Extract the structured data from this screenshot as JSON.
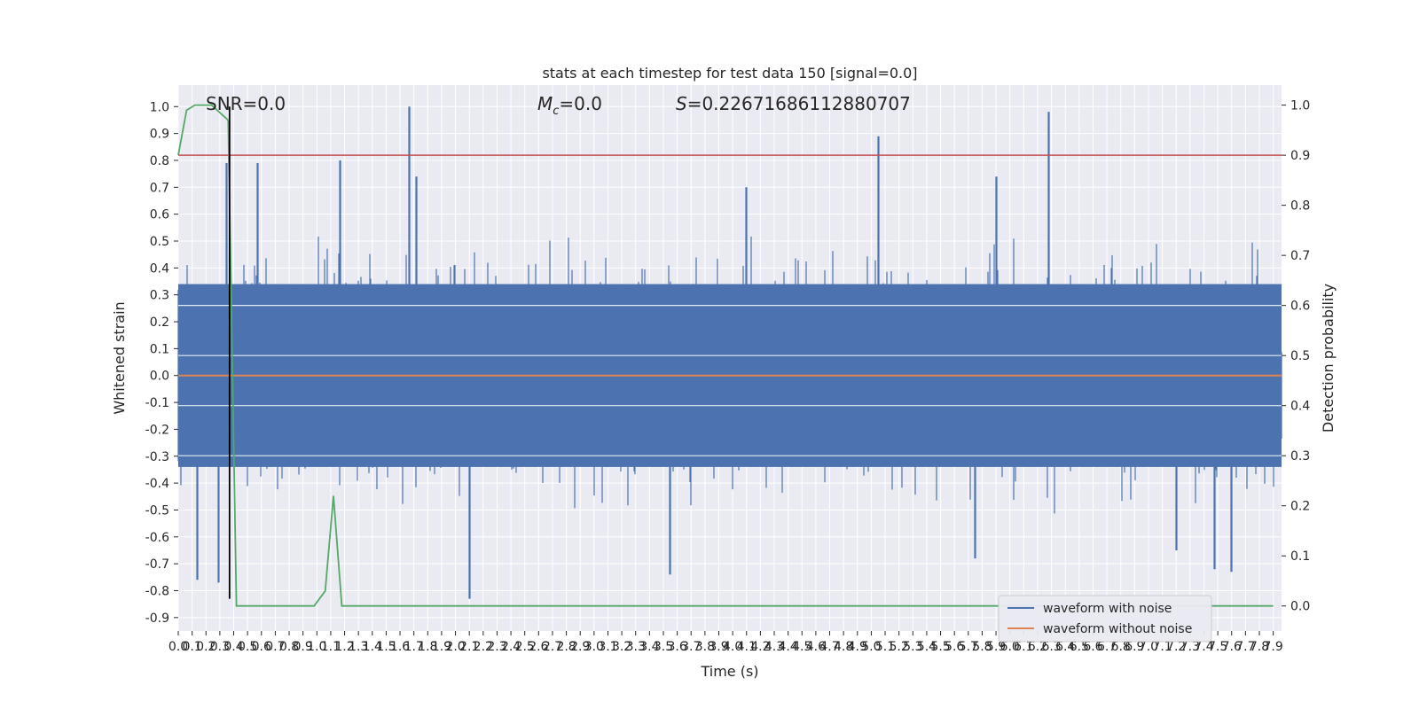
{
  "chart_data": {
    "type": "line",
    "title": "stats at each timestep for test data 150 [signal=0.0]",
    "xlabel": "Time (s)",
    "ylabel": "Whitened strain",
    "y2label": "Detection probability",
    "xlim": [
      0.0,
      7.96
    ],
    "ylim": [
      -0.95,
      1.08
    ],
    "y2lim": [
      -0.05,
      1.04
    ],
    "grid": true,
    "legend_position": "lower-right",
    "xticks": [
      "0.0",
      "0.1",
      "0.2",
      "0.3",
      "0.4",
      "0.5",
      "0.6",
      "0.7",
      "0.8",
      "0.9",
      "1.0",
      "1.1",
      "1.2",
      "1.3",
      "1.4",
      "1.5",
      "1.6",
      "1.7",
      "1.8",
      "1.9",
      "2.0",
      "2.1",
      "2.2",
      "2.3",
      "2.4",
      "2.5",
      "2.6",
      "2.7",
      "2.8",
      "2.9",
      "3.0",
      "3.1",
      "3.2",
      "3.3",
      "3.4",
      "3.5",
      "3.6",
      "3.7",
      "3.8",
      "3.9",
      "4.0",
      "4.1",
      "4.2",
      "4.3",
      "4.4",
      "4.5",
      "4.6",
      "4.7",
      "4.8",
      "4.9",
      "5.0",
      "5.1",
      "5.2",
      "5.3",
      "5.4",
      "5.5",
      "5.6",
      "5.7",
      "5.8",
      "5.9",
      "6.0",
      "6.1",
      "6.2",
      "6.3",
      "6.4",
      "6.5",
      "6.6",
      "6.7",
      "6.8",
      "6.9",
      "7.0",
      "7.1",
      "7.2",
      "7.3",
      "7.4",
      "7.5",
      "7.6",
      "7.7",
      "7.8",
      "7.9"
    ],
    "yticks": [
      "1.0",
      "0.9",
      "0.8",
      "0.7",
      "0.6",
      "0.5",
      "0.4",
      "0.3",
      "0.2",
      "0.1",
      "0.0",
      "-0.1",
      "-0.2",
      "-0.3",
      "-0.4",
      "-0.5",
      "-0.6",
      "-0.7",
      "-0.8",
      "-0.9"
    ],
    "y2ticks": [
      "1.0",
      "0.9",
      "0.8",
      "0.7",
      "0.6",
      "0.5",
      "0.4",
      "0.3",
      "0.2",
      "0.1",
      "0.0"
    ],
    "annotations": {
      "snr": "SNR=0.0",
      "mc": "=0.0",
      "s": "=0.22671686112880707"
    },
    "series": [
      {
        "name": "waveform with noise",
        "color": "#4c72b0",
        "axis": "left",
        "note": "dense noise trace; envelope approx ±0.35 with spikes",
        "spike_peaks": [
          {
            "x": 0.35,
            "y": 0.79
          },
          {
            "x": 0.57,
            "y": 0.79
          },
          {
            "x": 1.17,
            "y": 0.8
          },
          {
            "x": 1.67,
            "y": 1.0
          },
          {
            "x": 1.72,
            "y": 0.74
          },
          {
            "x": 5.05,
            "y": 0.89
          },
          {
            "x": 6.28,
            "y": 0.98
          },
          {
            "x": 5.9,
            "y": 0.74
          },
          {
            "x": 4.1,
            "y": 0.7
          }
        ],
        "spike_troughs": [
          {
            "x": 0.14,
            "y": -0.76
          },
          {
            "x": 0.29,
            "y": -0.77
          },
          {
            "x": 2.1,
            "y": -0.83
          },
          {
            "x": 3.55,
            "y": -0.74
          },
          {
            "x": 5.75,
            "y": -0.68
          },
          {
            "x": 7.48,
            "y": -0.72
          },
          {
            "x": 7.6,
            "y": -0.73
          },
          {
            "x": 7.2,
            "y": -0.65
          }
        ]
      },
      {
        "name": "waveform without noise",
        "color": "#dd8452",
        "axis": "left",
        "x": [
          0.0,
          7.96
        ],
        "y": [
          0.0,
          0.0
        ]
      },
      {
        "color": "#55a868",
        "axis": "right",
        "x": [
          0.0,
          0.06,
          0.12,
          0.24,
          0.36,
          0.42,
          0.48,
          0.98,
          1.06,
          1.12,
          1.18,
          7.9
        ],
        "y": [
          0.9,
          0.99,
          1.0,
          1.0,
          0.97,
          0.0,
          0.0,
          0.0,
          0.03,
          0.22,
          0.0,
          0.0
        ]
      }
    ],
    "reference_lines": {
      "threshold_red": {
        "axis": "right",
        "y": 0.9,
        "color": "#c44e52"
      },
      "marker_vertical": {
        "x": 0.37,
        "y_from": -0.83,
        "y_to": 1.0,
        "color": "#000000"
      }
    }
  }
}
